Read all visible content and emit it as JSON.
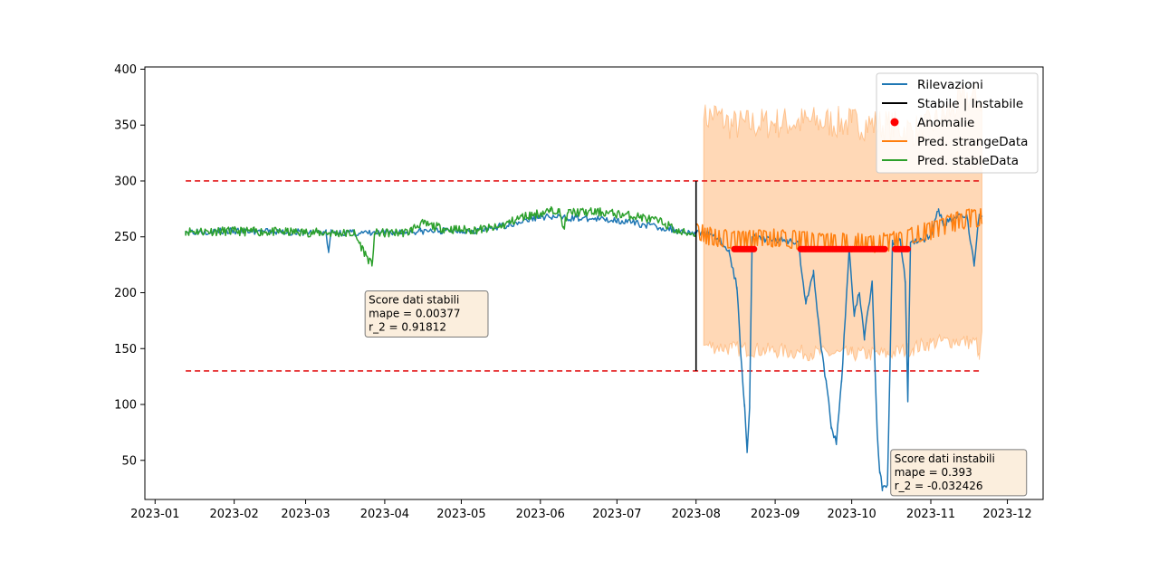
{
  "chart_data": {
    "type": "line",
    "title": "",
    "xlabel": "",
    "ylabel": "",
    "x_range": [
      "2022-12-28",
      "2023-12-15"
    ],
    "ylim": [
      15,
      402
    ],
    "x_ticks": [
      "2023-01",
      "2023-02",
      "2023-03",
      "2023-04",
      "2023-05",
      "2023-06",
      "2023-07",
      "2023-08",
      "2023-09",
      "2023-10",
      "2023-11",
      "2023-12"
    ],
    "y_ticks": [
      50,
      100,
      150,
      200,
      250,
      300,
      350,
      400
    ],
    "grid": false,
    "legend_position": "top-right",
    "legend": [
      {
        "label": "Rilevazioni",
        "kind": "line",
        "color": "#1f77b4"
      },
      {
        "label": "Stabile | Instabile",
        "kind": "line",
        "color": "#000000"
      },
      {
        "label": "Anomalie",
        "kind": "marker",
        "color": "#ff0000"
      },
      {
        "label": "Pred. strangeData",
        "kind": "line",
        "color": "#ff7f0e"
      },
      {
        "label": "Pred. stableData",
        "kind": "line",
        "color": "#2ca02c"
      }
    ],
    "thresholds": {
      "upper": 300,
      "lower": 130,
      "start": "2023-01-13",
      "end": "2023-11-21",
      "color": "#e41a1c"
    },
    "split": {
      "date": "2023-08-01",
      "ymin": 130,
      "ymax": 300
    },
    "stable_prediction": {
      "name": "Pred. stableData",
      "points": [
        [
          "2023-01-13",
          255
        ],
        [
          "2023-02-01",
          255
        ],
        [
          "2023-03-01",
          254
        ],
        [
          "2023-03-20",
          253
        ],
        [
          "2023-03-27",
          224
        ],
        [
          "2023-03-28",
          253
        ],
        [
          "2023-04-10",
          254
        ],
        [
          "2023-04-15",
          262
        ],
        [
          "2023-04-25",
          257
        ],
        [
          "2023-05-05",
          256
        ],
        [
          "2023-05-15",
          258
        ],
        [
          "2023-05-25",
          268
        ],
        [
          "2023-06-05",
          273
        ],
        [
          "2023-06-08",
          275
        ],
        [
          "2023-06-10",
          258
        ],
        [
          "2023-06-12",
          272
        ],
        [
          "2023-06-25",
          272
        ],
        [
          "2023-07-10",
          268
        ],
        [
          "2023-07-20",
          262
        ],
        [
          "2023-07-25",
          254
        ],
        [
          "2023-08-01",
          253
        ]
      ]
    },
    "observations": {
      "name": "Rilevazioni",
      "points": [
        [
          "2023-01-13",
          255
        ],
        [
          "2023-02-01",
          255
        ],
        [
          "2023-03-01",
          254
        ],
        [
          "2023-03-09",
          254
        ],
        [
          "2023-03-10",
          236
        ],
        [
          "2023-03-11",
          254
        ],
        [
          "2023-03-27",
          253
        ],
        [
          "2023-04-15",
          255
        ],
        [
          "2023-05-10",
          256
        ],
        [
          "2023-06-01",
          268
        ],
        [
          "2023-07-01",
          265
        ],
        [
          "2023-08-01",
          253
        ],
        [
          "2023-08-06",
          254
        ],
        [
          "2023-08-10",
          248
        ],
        [
          "2023-08-14",
          236
        ],
        [
          "2023-08-17",
          205
        ],
        [
          "2023-08-19",
          130
        ],
        [
          "2023-08-20",
          100
        ],
        [
          "2023-08-21",
          57
        ],
        [
          "2023-08-22",
          100
        ],
        [
          "2023-08-23",
          250
        ],
        [
          "2023-08-27",
          248
        ],
        [
          "2023-09-10",
          246
        ],
        [
          "2023-09-13",
          190
        ],
        [
          "2023-09-16",
          220
        ],
        [
          "2023-09-19",
          150
        ],
        [
          "2023-09-21",
          120
        ],
        [
          "2023-09-23",
          80
        ],
        [
          "2023-09-25",
          65
        ],
        [
          "2023-09-27",
          120
        ],
        [
          "2023-09-30",
          240
        ],
        [
          "2023-10-02",
          180
        ],
        [
          "2023-10-04",
          200
        ],
        [
          "2023-10-06",
          160
        ],
        [
          "2023-10-09",
          210
        ],
        [
          "2023-10-11",
          75
        ],
        [
          "2023-10-12",
          40
        ],
        [
          "2023-10-13",
          25
        ],
        [
          "2023-10-15",
          28
        ],
        [
          "2023-10-17",
          245
        ],
        [
          "2023-10-20",
          248
        ],
        [
          "2023-10-22",
          210
        ],
        [
          "2023-10-23",
          103
        ],
        [
          "2023-10-24",
          245
        ],
        [
          "2023-11-01",
          250
        ],
        [
          "2023-11-04",
          275
        ],
        [
          "2023-11-06",
          260
        ],
        [
          "2023-11-10",
          268
        ],
        [
          "2023-11-15",
          270
        ],
        [
          "2023-11-18",
          225
        ],
        [
          "2023-11-20",
          270
        ],
        [
          "2023-11-21",
          268
        ]
      ]
    },
    "strange_prediction": {
      "name": "Pred. strangeData",
      "points": [
        [
          "2023-08-01",
          253
        ],
        [
          "2023-08-10",
          248
        ],
        [
          "2023-08-20",
          246
        ],
        [
          "2023-09-01",
          248
        ],
        [
          "2023-09-10",
          246
        ],
        [
          "2023-09-20",
          244
        ],
        [
          "2023-10-01",
          244
        ],
        [
          "2023-10-10",
          243
        ],
        [
          "2023-10-20",
          246
        ],
        [
          "2023-11-01",
          255
        ],
        [
          "2023-11-10",
          262
        ],
        [
          "2023-11-15",
          265
        ],
        [
          "2023-11-21",
          267
        ]
      ],
      "band_upper": [
        [
          "2023-08-04",
          355
        ],
        [
          "2023-08-08",
          360
        ],
        [
          "2023-08-15",
          350
        ],
        [
          "2023-09-01",
          352
        ],
        [
          "2023-09-15",
          353
        ],
        [
          "2023-10-01",
          352
        ],
        [
          "2023-10-15",
          350
        ],
        [
          "2023-10-25",
          345
        ],
        [
          "2023-11-01",
          350
        ],
        [
          "2023-11-10",
          365
        ],
        [
          "2023-11-15",
          375
        ],
        [
          "2023-11-21",
          372
        ]
      ],
      "band_lower": [
        [
          "2023-08-04",
          153
        ],
        [
          "2023-08-15",
          150
        ],
        [
          "2023-09-01",
          148
        ],
        [
          "2023-09-15",
          146
        ],
        [
          "2023-10-01",
          145
        ],
        [
          "2023-10-15",
          145
        ],
        [
          "2023-10-25",
          150
        ],
        [
          "2023-11-01",
          155
        ],
        [
          "2023-11-10",
          157
        ],
        [
          "2023-11-19",
          155
        ],
        [
          "2023-11-20",
          140
        ],
        [
          "2023-11-21",
          165
        ]
      ]
    },
    "anomalies": {
      "name": "Anomalie",
      "y": 239,
      "segments": [
        [
          "2023-08-16",
          "2023-08-24"
        ],
        [
          "2023-09-11",
          "2023-10-14"
        ],
        [
          "2023-10-18",
          "2023-10-23"
        ]
      ]
    },
    "annotations": [
      {
        "id": "stable-score",
        "title": "Score dati stabili",
        "lines": [
          "mape = 0.00377",
          "r_2 = 0.91812"
        ],
        "at": [
          "2023-03-25",
          200
        ]
      },
      {
        "id": "unstable-score",
        "title": "Score dati instabili",
        "lines": [
          "mape = 0.393",
          "r_2 = -0.032426"
        ],
        "at": [
          "2023-10-17",
          58
        ]
      }
    ]
  }
}
